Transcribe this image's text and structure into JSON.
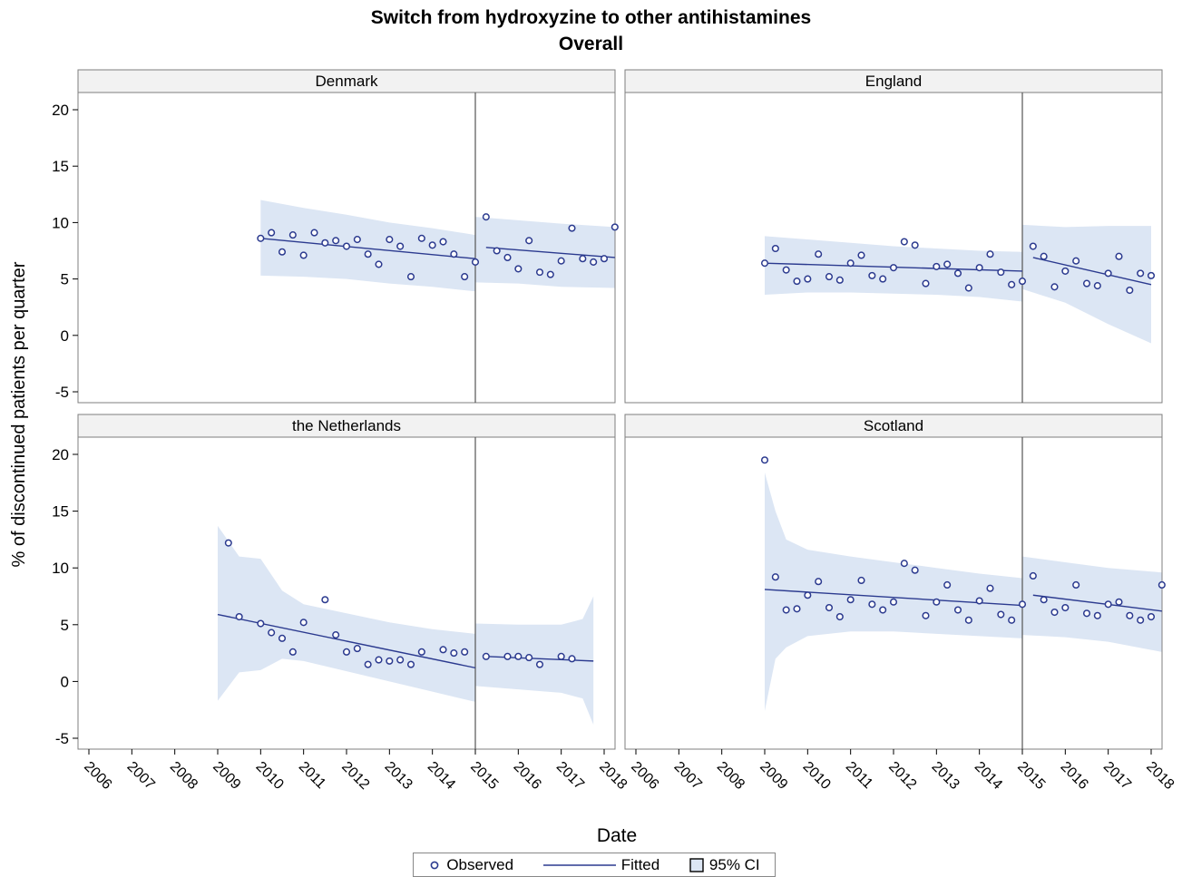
{
  "title": "Switch from hydroxyzine to other antihistamines",
  "subtitle": "Overall",
  "ylabel": "% of discontinued patients per quarter",
  "xlabel": "Date",
  "legend": {
    "observed": "Observed",
    "fitted": "Fitted",
    "ci": "95% CI"
  },
  "colors": {
    "marker": "#2b3a8f",
    "fitted": "#2b3a8f",
    "ci": "#dce6f4",
    "frame": "#7f7f7f",
    "header_bg": "#f2f2f2"
  },
  "chart_data": {
    "type": "scatter",
    "xlim": [
      2006,
      2018
    ],
    "ylim": [
      -5,
      20
    ],
    "yticks": [
      "-5",
      "0",
      "5",
      "10",
      "15",
      "20"
    ],
    "xticks": [
      "2006",
      "2007",
      "2008",
      "2009",
      "2010",
      "2011",
      "2012",
      "2013",
      "2014",
      "2015",
      "2016",
      "2017",
      "2018"
    ],
    "intervention": 2015,
    "grid": false,
    "legend_position": "bottom",
    "panels": [
      {
        "name": "Denmark",
        "observed": [
          [
            2010.0,
            8.6
          ],
          [
            2010.25,
            9.1
          ],
          [
            2010.5,
            7.4
          ],
          [
            2010.75,
            8.9
          ],
          [
            2011.0,
            7.1
          ],
          [
            2011.25,
            9.1
          ],
          [
            2011.5,
            8.2
          ],
          [
            2011.75,
            8.4
          ],
          [
            2012.0,
            7.9
          ],
          [
            2012.25,
            8.5
          ],
          [
            2012.5,
            7.2
          ],
          [
            2012.75,
            6.3
          ],
          [
            2013.0,
            8.5
          ],
          [
            2013.25,
            7.9
          ],
          [
            2013.5,
            5.2
          ],
          [
            2013.75,
            8.6
          ],
          [
            2014.0,
            8.0
          ],
          [
            2014.25,
            8.3
          ],
          [
            2014.5,
            7.2
          ],
          [
            2014.75,
            5.2
          ],
          [
            2015.0,
            6.5
          ],
          [
            2015.25,
            10.5
          ],
          [
            2015.5,
            7.5
          ],
          [
            2015.75,
            6.9
          ],
          [
            2016.0,
            5.9
          ],
          [
            2016.25,
            8.4
          ],
          [
            2016.5,
            5.6
          ],
          [
            2016.75,
            5.4
          ],
          [
            2017.0,
            6.6
          ],
          [
            2017.25,
            9.5
          ],
          [
            2017.5,
            6.8
          ],
          [
            2017.75,
            6.5
          ],
          [
            2018.0,
            6.8
          ],
          [
            2018.25,
            9.6
          ]
        ],
        "fitted": [
          [
            [
              2010.0,
              8.6
            ],
            [
              2015.0,
              6.8
            ]
          ],
          [
            [
              2015.25,
              7.8
            ],
            [
              2018.25,
              6.9
            ]
          ]
        ],
        "ci_upper": [
          [
            2010.0,
            12.0
          ],
          [
            2011.0,
            11.3
          ],
          [
            2012.0,
            10.7
          ],
          [
            2013.0,
            10.0
          ],
          [
            2014.0,
            9.5
          ],
          [
            2015.0,
            8.9
          ],
          [
            2015.0,
            10.5
          ],
          [
            2016.0,
            10.2
          ],
          [
            2017.0,
            9.9
          ],
          [
            2018.25,
            9.6
          ]
        ],
        "ci_lower": [
          [
            2010.0,
            5.3
          ],
          [
            2011.0,
            5.2
          ],
          [
            2012.0,
            5.0
          ],
          [
            2013.0,
            4.6
          ],
          [
            2014.0,
            4.3
          ],
          [
            2015.0,
            3.9
          ],
          [
            2015.0,
            4.7
          ],
          [
            2016.0,
            4.6
          ],
          [
            2017.0,
            4.3
          ],
          [
            2018.25,
            4.2
          ]
        ]
      },
      {
        "name": "England",
        "observed": [
          [
            2009.0,
            6.4
          ],
          [
            2009.25,
            7.7
          ],
          [
            2009.5,
            5.8
          ],
          [
            2009.75,
            4.8
          ],
          [
            2010.0,
            5.0
          ],
          [
            2010.25,
            7.2
          ],
          [
            2010.5,
            5.2
          ],
          [
            2010.75,
            4.9
          ],
          [
            2011.0,
            6.4
          ],
          [
            2011.25,
            7.1
          ],
          [
            2011.5,
            5.3
          ],
          [
            2011.75,
            5.0
          ],
          [
            2012.0,
            6.0
          ],
          [
            2012.25,
            8.3
          ],
          [
            2012.5,
            8.0
          ],
          [
            2012.75,
            4.6
          ],
          [
            2013.0,
            6.1
          ],
          [
            2013.25,
            6.3
          ],
          [
            2013.5,
            5.5
          ],
          [
            2013.75,
            4.2
          ],
          [
            2014.0,
            6.0
          ],
          [
            2014.25,
            7.2
          ],
          [
            2014.5,
            5.6
          ],
          [
            2014.75,
            4.5
          ],
          [
            2015.0,
            4.8
          ],
          [
            2015.25,
            7.9
          ],
          [
            2015.5,
            7.0
          ],
          [
            2015.75,
            4.3
          ],
          [
            2016.0,
            5.7
          ],
          [
            2016.25,
            6.6
          ],
          [
            2016.5,
            4.6
          ],
          [
            2016.75,
            4.4
          ],
          [
            2017.0,
            5.5
          ],
          [
            2017.25,
            7.0
          ],
          [
            2017.5,
            4.0
          ],
          [
            2017.75,
            5.5
          ],
          [
            2018.0,
            5.3
          ]
        ],
        "fitted": [
          [
            [
              2009.0,
              6.4
            ],
            [
              2015.0,
              5.7
            ]
          ],
          [
            [
              2015.25,
              6.9
            ],
            [
              2018.0,
              4.5
            ]
          ]
        ],
        "ci_upper": [
          [
            2009.0,
            8.8
          ],
          [
            2010.0,
            8.5
          ],
          [
            2011.0,
            8.2
          ],
          [
            2012.0,
            7.9
          ],
          [
            2013.0,
            7.7
          ],
          [
            2014.0,
            7.5
          ],
          [
            2015.0,
            7.4
          ],
          [
            2015.0,
            9.8
          ],
          [
            2016.0,
            9.6
          ],
          [
            2017.0,
            9.7
          ],
          [
            2018.0,
            9.7
          ]
        ],
        "ci_lower": [
          [
            2009.0,
            3.6
          ],
          [
            2010.0,
            3.8
          ],
          [
            2011.0,
            3.8
          ],
          [
            2012.0,
            3.7
          ],
          [
            2013.0,
            3.6
          ],
          [
            2014.0,
            3.4
          ],
          [
            2015.0,
            3.0
          ],
          [
            2015.0,
            4.1
          ],
          [
            2016.0,
            2.9
          ],
          [
            2017.0,
            1.0
          ],
          [
            2018.0,
            -0.7
          ]
        ]
      },
      {
        "name": "the Netherlands",
        "observed": [
          [
            2009.25,
            12.2
          ],
          [
            2009.5,
            5.7
          ],
          [
            2010.0,
            5.1
          ],
          [
            2010.25,
            4.3
          ],
          [
            2010.5,
            3.8
          ],
          [
            2010.75,
            2.6
          ],
          [
            2011.0,
            5.2
          ],
          [
            2011.5,
            7.2
          ],
          [
            2011.75,
            4.1
          ],
          [
            2012.0,
            2.6
          ],
          [
            2012.25,
            2.9
          ],
          [
            2012.5,
            1.5
          ],
          [
            2012.75,
            1.9
          ],
          [
            2013.0,
            1.8
          ],
          [
            2013.25,
            1.9
          ],
          [
            2013.5,
            1.5
          ],
          [
            2013.75,
            2.6
          ],
          [
            2014.25,
            2.8
          ],
          [
            2014.5,
            2.5
          ],
          [
            2014.75,
            2.6
          ],
          [
            2015.25,
            2.2
          ],
          [
            2015.75,
            2.2
          ],
          [
            2016.0,
            2.2
          ],
          [
            2016.25,
            2.1
          ],
          [
            2016.5,
            1.5
          ],
          [
            2017.0,
            2.2
          ],
          [
            2017.25,
            2.0
          ]
        ],
        "fitted": [
          [
            [
              2009.0,
              5.9
            ],
            [
              2015.0,
              1.2
            ]
          ],
          [
            [
              2015.25,
              2.2
            ],
            [
              2017.75,
              1.8
            ]
          ]
        ],
        "ci_upper": [
          [
            2009.0,
            13.7
          ],
          [
            2009.5,
            11.0
          ],
          [
            2010.0,
            10.8
          ],
          [
            2010.5,
            8.0
          ],
          [
            2011.0,
            6.8
          ],
          [
            2012.0,
            6.0
          ],
          [
            2013.0,
            5.2
          ],
          [
            2014.0,
            4.6
          ],
          [
            2015.0,
            4.2
          ],
          [
            2015.0,
            5.1
          ],
          [
            2016.0,
            5.0
          ],
          [
            2017.0,
            5.0
          ],
          [
            2017.5,
            5.5
          ],
          [
            2017.75,
            7.5
          ]
        ],
        "ci_lower": [
          [
            2009.0,
            -1.7
          ],
          [
            2009.5,
            0.8
          ],
          [
            2010.0,
            1.0
          ],
          [
            2010.5,
            2.0
          ],
          [
            2011.0,
            1.8
          ],
          [
            2012.0,
            0.9
          ],
          [
            2013.0,
            0.0
          ],
          [
            2014.0,
            -0.9
          ],
          [
            2015.0,
            -1.8
          ],
          [
            2015.0,
            -0.4
          ],
          [
            2016.0,
            -0.7
          ],
          [
            2017.0,
            -1.0
          ],
          [
            2017.5,
            -1.5
          ],
          [
            2017.75,
            -3.8
          ]
        ]
      },
      {
        "name": "Scotland",
        "observed": [
          [
            2009.0,
            19.5
          ],
          [
            2009.25,
            9.2
          ],
          [
            2009.5,
            6.3
          ],
          [
            2009.75,
            6.4
          ],
          [
            2010.0,
            7.6
          ],
          [
            2010.25,
            8.8
          ],
          [
            2010.5,
            6.5
          ],
          [
            2010.75,
            5.7
          ],
          [
            2011.0,
            7.2
          ],
          [
            2011.25,
            8.9
          ],
          [
            2011.5,
            6.8
          ],
          [
            2011.75,
            6.3
          ],
          [
            2012.0,
            7.0
          ],
          [
            2012.25,
            10.4
          ],
          [
            2012.5,
            9.8
          ],
          [
            2012.75,
            5.8
          ],
          [
            2013.0,
            7.0
          ],
          [
            2013.25,
            8.5
          ],
          [
            2013.5,
            6.3
          ],
          [
            2013.75,
            5.4
          ],
          [
            2014.0,
            7.1
          ],
          [
            2014.25,
            8.2
          ],
          [
            2014.5,
            5.9
          ],
          [
            2014.75,
            5.4
          ],
          [
            2015.0,
            6.8
          ],
          [
            2015.25,
            9.3
          ],
          [
            2015.5,
            7.2
          ],
          [
            2015.75,
            6.1
          ],
          [
            2016.0,
            6.5
          ],
          [
            2016.25,
            8.5
          ],
          [
            2016.5,
            6.0
          ],
          [
            2016.75,
            5.8
          ],
          [
            2017.0,
            6.8
          ],
          [
            2017.25,
            7.0
          ],
          [
            2017.5,
            5.8
          ],
          [
            2017.75,
            5.4
          ],
          [
            2018.0,
            5.7
          ],
          [
            2018.25,
            8.5
          ]
        ],
        "fitted": [
          [
            [
              2009.0,
              8.1
            ],
            [
              2015.0,
              6.7
            ]
          ],
          [
            [
              2015.25,
              7.6
            ],
            [
              2018.25,
              6.2
            ]
          ]
        ],
        "ci_upper": [
          [
            2009.0,
            18.4
          ],
          [
            2009.25,
            15.0
          ],
          [
            2009.5,
            12.5
          ],
          [
            2010.0,
            11.6
          ],
          [
            2011.0,
            11.0
          ],
          [
            2012.0,
            10.5
          ],
          [
            2013.0,
            10.0
          ],
          [
            2014.0,
            9.5
          ],
          [
            2015.0,
            9.1
          ],
          [
            2015.0,
            11.0
          ],
          [
            2016.0,
            10.5
          ],
          [
            2017.0,
            10.0
          ],
          [
            2018.25,
            9.6
          ]
        ],
        "ci_lower": [
          [
            2009.0,
            -2.6
          ],
          [
            2009.25,
            2.0
          ],
          [
            2009.5,
            3.0
          ],
          [
            2010.0,
            4.0
          ],
          [
            2011.0,
            4.4
          ],
          [
            2012.0,
            4.4
          ],
          [
            2013.0,
            4.2
          ],
          [
            2014.0,
            4.0
          ],
          [
            2015.0,
            3.8
          ],
          [
            2015.0,
            4.1
          ],
          [
            2016.0,
            3.9
          ],
          [
            2017.0,
            3.5
          ],
          [
            2018.25,
            2.6
          ]
        ]
      }
    ]
  }
}
